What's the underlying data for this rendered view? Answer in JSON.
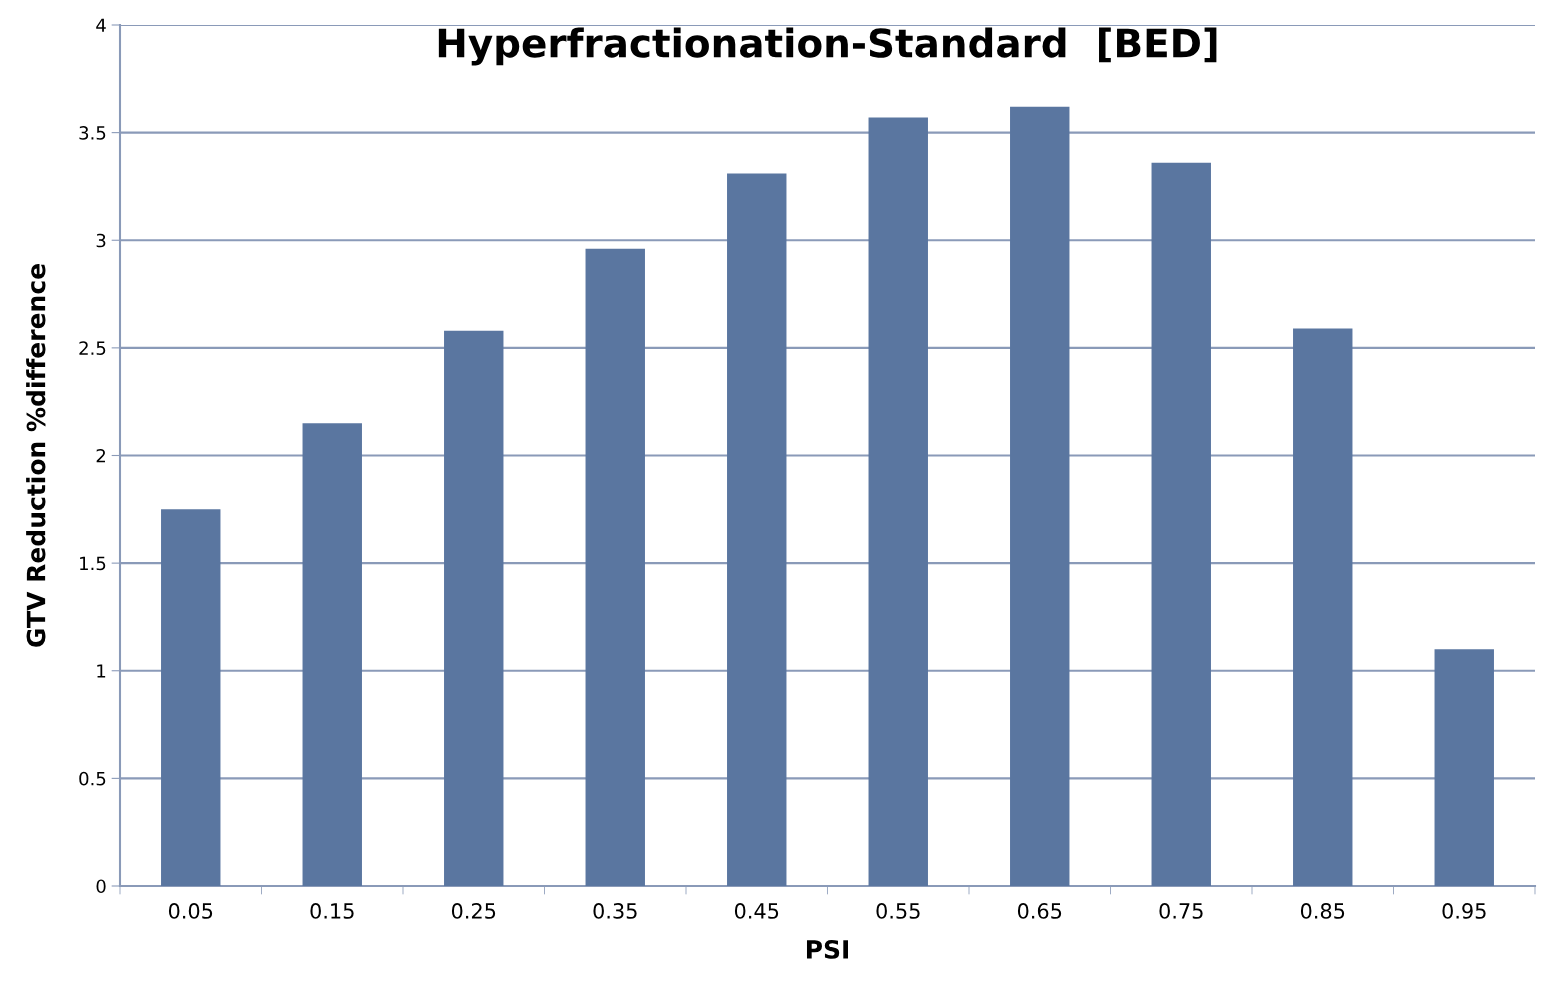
{
  "chart_data": {
    "type": "bar",
    "title": "Hyperfractionation-Standard  [BED]",
    "xlabel": "PSI",
    "ylabel": "GTV Reduction %difference",
    "categories": [
      "0.05",
      "0.15",
      "0.25",
      "0.35",
      "0.45",
      "0.55",
      "0.65",
      "0.75",
      "0.85",
      "0.95"
    ],
    "values": [
      1.75,
      2.15,
      2.58,
      2.96,
      3.31,
      3.57,
      3.62,
      3.36,
      2.59,
      1.1
    ],
    "color": "#5a76a0",
    "ylim": [
      0,
      4
    ],
    "yticks": [
      0,
      0.5,
      1,
      1.5,
      2,
      2.5,
      3,
      3.5,
      4
    ],
    "grid": "y",
    "legend": false
  }
}
